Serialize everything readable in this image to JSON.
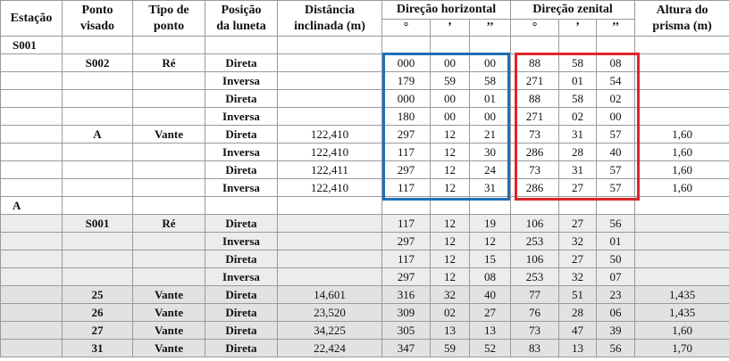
{
  "headers": {
    "estacao": "Estação",
    "ponto_visado": [
      "Ponto",
      "visado"
    ],
    "tipo_de_ponto": [
      "Tipo de",
      "ponto"
    ],
    "posicao_luneta": [
      "Posição",
      "da luneta"
    ],
    "distancia": [
      "Distância",
      "inclinada (m)"
    ],
    "direcao_horizontal": "Direção horizontal",
    "direcao_zenital": "Direção zenital",
    "altura_prisma": [
      "Altura do",
      "prisma (m)"
    ],
    "unit_deg": "°",
    "unit_min": "’",
    "unit_sec": "’’"
  },
  "rows": [
    {
      "estacao": "S001",
      "ponto": "",
      "tipo": "",
      "posicao": "",
      "dist": "",
      "hz": [
        "",
        "",
        ""
      ],
      "zn": [
        "",
        "",
        ""
      ],
      "altura": ""
    },
    {
      "estacao": "",
      "ponto": "S002",
      "tipo": "Ré",
      "posicao": "Direta",
      "dist": "",
      "hz": [
        "000",
        "00",
        "00"
      ],
      "zn": [
        "88",
        "58",
        "08"
      ],
      "altura": ""
    },
    {
      "estacao": "",
      "ponto": "",
      "tipo": "",
      "posicao": "Inversa",
      "dist": "",
      "hz": [
        "179",
        "59",
        "58"
      ],
      "zn": [
        "271",
        "01",
        "54"
      ],
      "altura": ""
    },
    {
      "estacao": "",
      "ponto": "",
      "tipo": "",
      "posicao": "Direta",
      "dist": "",
      "hz": [
        "000",
        "00",
        "01"
      ],
      "zn": [
        "88",
        "58",
        "02"
      ],
      "altura": ""
    },
    {
      "estacao": "",
      "ponto": "",
      "tipo": "",
      "posicao": "Inversa",
      "dist": "",
      "hz": [
        "180",
        "00",
        "00"
      ],
      "zn": [
        "271",
        "02",
        "00"
      ],
      "altura": ""
    },
    {
      "estacao": "",
      "ponto": "A",
      "tipo": "Vante",
      "posicao": "Direta",
      "dist": "122,410",
      "hz": [
        "297",
        "12",
        "21"
      ],
      "zn": [
        "73",
        "31",
        "57"
      ],
      "altura": "1,60"
    },
    {
      "estacao": "",
      "ponto": "",
      "tipo": "",
      "posicao": "Inversa",
      "dist": "122,410",
      "hz": [
        "117",
        "12",
        "30"
      ],
      "zn": [
        "286",
        "28",
        "40"
      ],
      "altura": "1,60"
    },
    {
      "estacao": "",
      "ponto": "",
      "tipo": "",
      "posicao": "Direta",
      "dist": "122,411",
      "hz": [
        "297",
        "12",
        "24"
      ],
      "zn": [
        "73",
        "31",
        "57"
      ],
      "altura": "1,60"
    },
    {
      "estacao": "",
      "ponto": "",
      "tipo": "",
      "posicao": "Inversa",
      "dist": "122,410",
      "hz": [
        "117",
        "12",
        "31"
      ],
      "zn": [
        "286",
        "27",
        "57"
      ],
      "altura": "1,60"
    },
    {
      "estacao": "A",
      "ponto": "",
      "tipo": "",
      "posicao": "",
      "dist": "",
      "hz": [
        "",
        "",
        ""
      ],
      "zn": [
        "",
        "",
        ""
      ],
      "altura": ""
    },
    {
      "estacao": "",
      "ponto": "S001",
      "tipo": "Ré",
      "posicao": "Direta",
      "dist": "",
      "hz": [
        "117",
        "12",
        "19"
      ],
      "zn": [
        "106",
        "27",
        "56"
      ],
      "altura": ""
    },
    {
      "estacao": "",
      "ponto": "",
      "tipo": "",
      "posicao": "Inversa",
      "dist": "",
      "hz": [
        "297",
        "12",
        "12"
      ],
      "zn": [
        "253",
        "32",
        "01"
      ],
      "altura": ""
    },
    {
      "estacao": "",
      "ponto": "",
      "tipo": "",
      "posicao": "Direta",
      "dist": "",
      "hz": [
        "117",
        "12",
        "15"
      ],
      "zn": [
        "106",
        "27",
        "50"
      ],
      "altura": ""
    },
    {
      "estacao": "",
      "ponto": "",
      "tipo": "",
      "posicao": "Inversa",
      "dist": "",
      "hz": [
        "297",
        "12",
        "08"
      ],
      "zn": [
        "253",
        "32",
        "07"
      ],
      "altura": ""
    },
    {
      "estacao": "",
      "ponto": "25",
      "tipo": "Vante",
      "posicao": "Direta",
      "dist": "14,601",
      "hz": [
        "316",
        "32",
        "40"
      ],
      "zn": [
        "77",
        "51",
        "23"
      ],
      "altura": "1,435"
    },
    {
      "estacao": "",
      "ponto": "26",
      "tipo": "Vante",
      "posicao": "Direta",
      "dist": "23,520",
      "hz": [
        "309",
        "02",
        "27"
      ],
      "zn": [
        "76",
        "28",
        "06"
      ],
      "altura": "1,435"
    },
    {
      "estacao": "",
      "ponto": "27",
      "tipo": "Vante",
      "posicao": "Direta",
      "dist": "34,225",
      "hz": [
        "305",
        "13",
        "13"
      ],
      "zn": [
        "73",
        "47",
        "39"
      ],
      "altura": "1,60"
    },
    {
      "estacao": "",
      "ponto": "31",
      "tipo": "Vante",
      "posicao": "Direta",
      "dist": "22,424",
      "hz": [
        "347",
        "59",
        "52"
      ],
      "zn": [
        "83",
        "13",
        "56"
      ],
      "altura": "1,70"
    }
  ],
  "highlight_colors": {
    "horizontal_box": "#1f6fb5",
    "zenital_box": "#e0232a"
  }
}
